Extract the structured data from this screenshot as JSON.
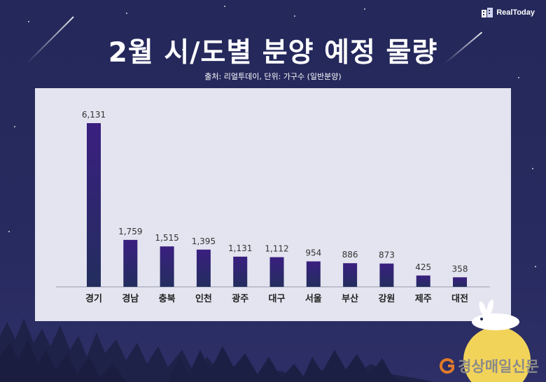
{
  "brand": {
    "name": "RealToday"
  },
  "title": "2월 시/도별 분양 예정 물량",
  "source": "출처: 리얼투데이, 단위: 가구수 (일반분양)",
  "footer": {
    "publisher": "경상매일신문"
  },
  "colors": {
    "bar_top": "#3a1f80",
    "bar_bottom": "#232e5e",
    "panel": "#e3e4ef",
    "background": "#24285a"
  },
  "chart_data": {
    "type": "bar",
    "categories": [
      "경기",
      "경남",
      "충북",
      "인천",
      "광주",
      "대구",
      "서울",
      "부산",
      "강원",
      "제주",
      "대전"
    ],
    "values": [
      6131,
      1759,
      1515,
      1395,
      1131,
      1112,
      954,
      886,
      873,
      425,
      358
    ],
    "value_labels": [
      "6,131",
      "1,759",
      "1,515",
      "1,395",
      "1,131",
      "1,112",
      "954",
      "886",
      "873",
      "425",
      "358"
    ],
    "ylim": [
      0,
      6131
    ],
    "grid": false,
    "legend": "none"
  }
}
